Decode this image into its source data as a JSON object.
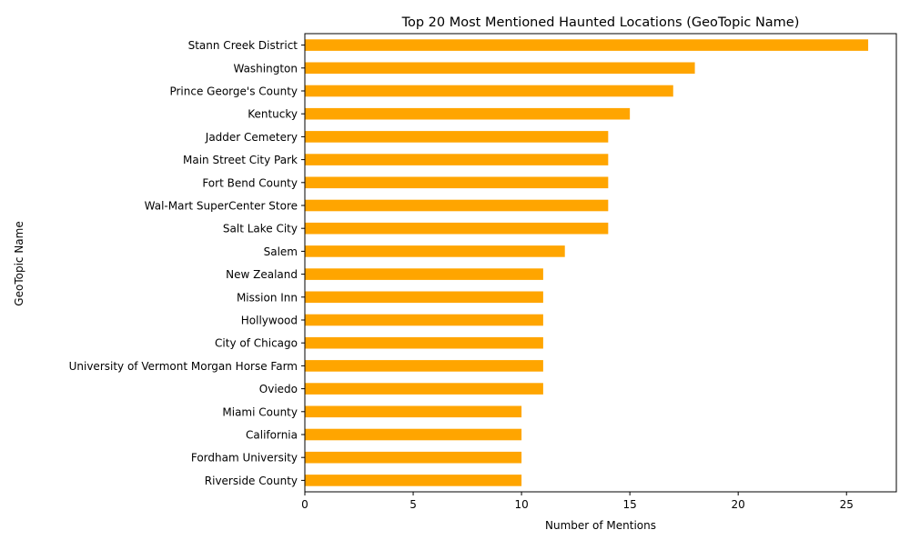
{
  "chart_data": {
    "type": "bar",
    "orientation": "horizontal",
    "title": "Top 20 Most Mentioned Haunted Locations (GeoTopic Name)",
    "xlabel": "Number of Mentions",
    "ylabel": "GeoTopic Name",
    "xlim": [
      0,
      27.3
    ],
    "xticks": [
      0,
      5,
      10,
      15,
      20,
      25
    ],
    "grid": false,
    "legend": "none",
    "bar_color": "#FFA500",
    "categories": [
      "Stann Creek District",
      "Washington",
      "Prince George's County",
      "Kentucky",
      "Jadder Cemetery",
      "Main Street City Park",
      "Fort Bend County",
      "Wal-Mart SuperCenter Store",
      "Salt Lake City",
      "Salem",
      "New Zealand",
      "Mission Inn",
      "Hollywood",
      "City of Chicago",
      "University of Vermont Morgan Horse Farm",
      "Oviedo",
      "Miami County",
      "California",
      "Fordham University",
      "Riverside County"
    ],
    "values": [
      26,
      18,
      17,
      15,
      14,
      14,
      14,
      14,
      14,
      12,
      11,
      11,
      11,
      11,
      11,
      11,
      10,
      10,
      10,
      10
    ]
  }
}
